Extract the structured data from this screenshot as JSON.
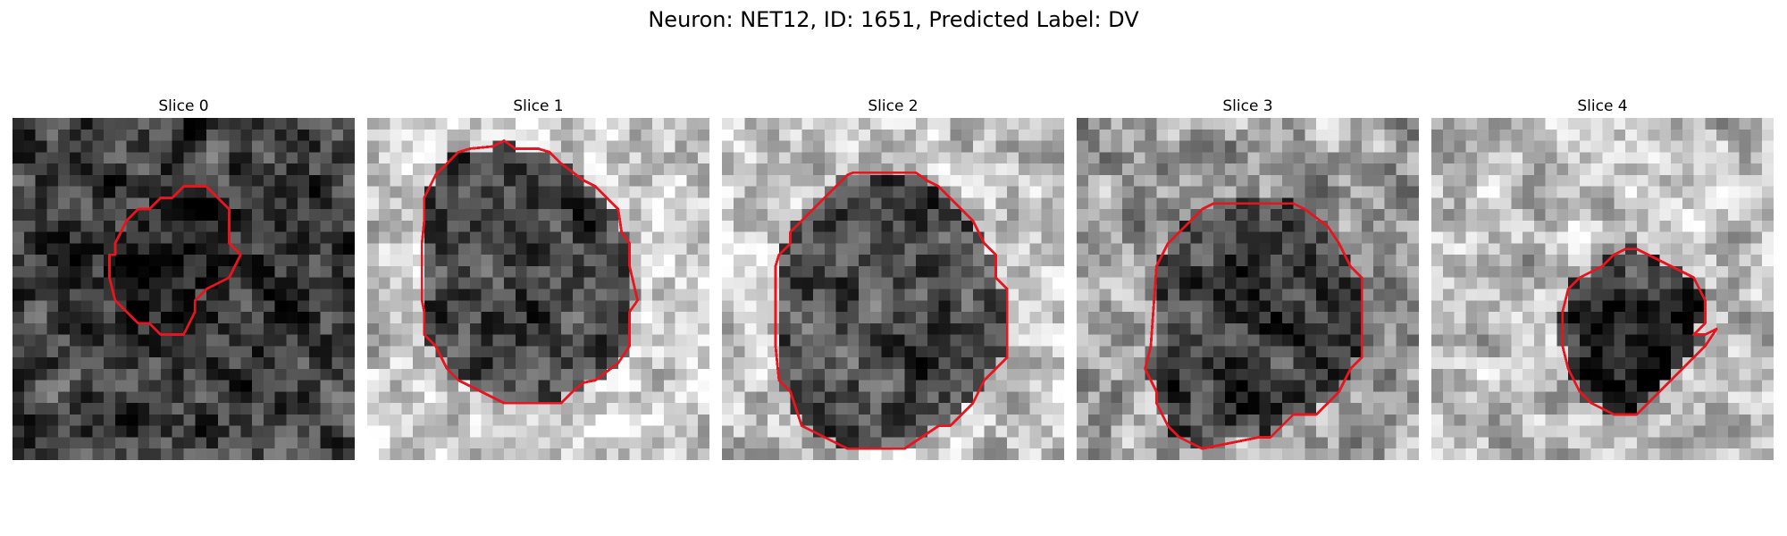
{
  "figure": {
    "title": "Neuron: NET12, ID: 1651, Predicted Label: DV"
  },
  "panels": [
    {
      "title": "Slice 0",
      "seed": 11,
      "brightness": 0.26,
      "roi_brightness": 0.1,
      "cell_contrast": -0.12
    },
    {
      "title": "Slice 1",
      "seed": 23,
      "brightness": 0.8,
      "roi_brightness": 0.28,
      "cell_contrast": -0.45
    },
    {
      "title": "Slice 2",
      "seed": 37,
      "brightness": 0.76,
      "roi_brightness": 0.3,
      "cell_contrast": -0.42
    },
    {
      "title": "Slice 3",
      "seed": 53,
      "brightness": 0.62,
      "roi_brightness": 0.24,
      "cell_contrast": -0.3
    },
    {
      "title": "Slice 4",
      "seed": 71,
      "brightness": 0.74,
      "roi_brightness": 0.18,
      "cell_contrast": -0.45
    }
  ],
  "contour_color": "#e8141e",
  "colormap": "gray"
}
